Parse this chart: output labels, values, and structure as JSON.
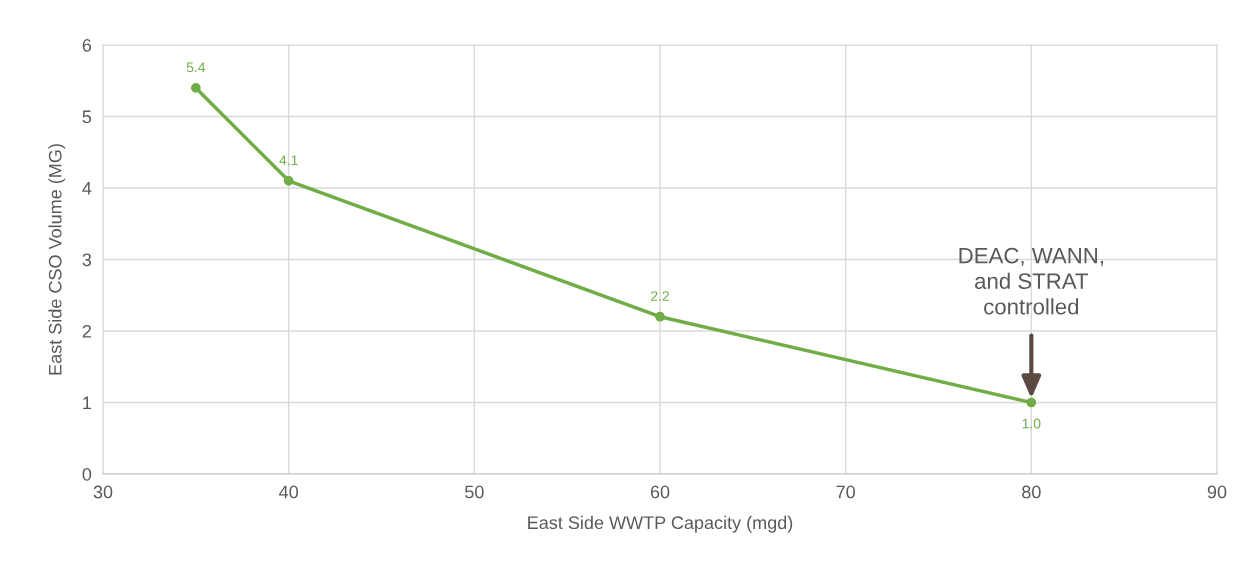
{
  "chart_data": {
    "type": "line",
    "xlabel": "East Side WWTP Capacity (mgd)",
    "ylabel": "East Side CSO Volume (MG)",
    "x": [
      35,
      40,
      60,
      80
    ],
    "series": [
      {
        "color": "#70ad47",
        "values": [
          5.4,
          4.1,
          2.2,
          1.0
        ],
        "value_labels": [
          "5.4",
          "4.1",
          "2.2",
          "1.0"
        ]
      }
    ],
    "xlim": [
      30,
      90
    ],
    "xticks": [
      30,
      40,
      50,
      60,
      70,
      80,
      90
    ],
    "ylim": [
      0,
      6
    ],
    "yticks": [
      0,
      1,
      2,
      3,
      4,
      5,
      6
    ],
    "grid": true,
    "marker": "circle",
    "line_style": "solid",
    "annotations": [
      "DEAC, WANN,\nand STRAT\ncontrolled"
    ]
  }
}
